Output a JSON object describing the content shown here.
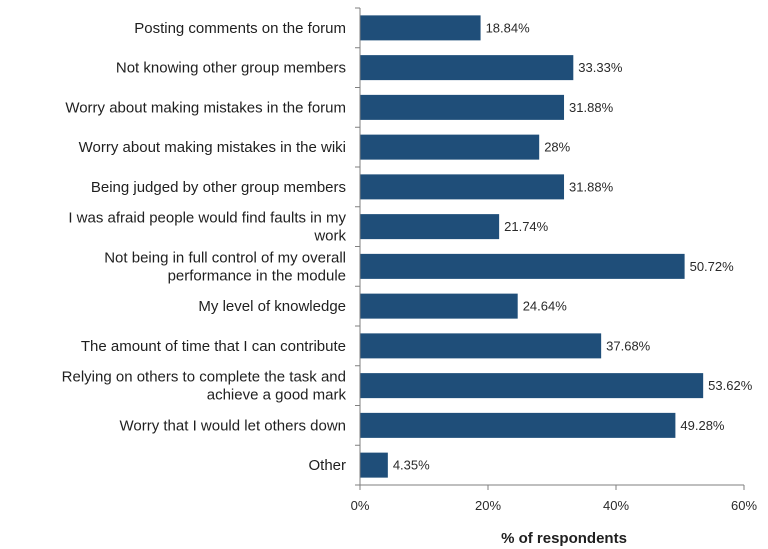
{
  "chart_data": {
    "type": "bar",
    "orientation": "horizontal",
    "categories": [
      "Posting comments on the forum",
      "Not knowing other group members",
      "Worry about making mistakes in the forum",
      "Worry about making mistakes in the wiki",
      "Being judged by other group members",
      "I was afraid people would find faults in my work",
      "Not being in full control of my overall performance in the module",
      "My level of knowledge",
      "The amount of time that I can contribute",
      "Relying on others to complete the task and achieve a good mark",
      "Worry that I would let others down",
      "Other"
    ],
    "category_lines": [
      [
        "Posting comments on the forum"
      ],
      [
        "Not knowing other group members"
      ],
      [
        "Worry about making mistakes in the forum"
      ],
      [
        "Worry about making mistakes in the wiki"
      ],
      [
        "Being judged by other group members"
      ],
      [
        "I was afraid people would find faults in my",
        "work"
      ],
      [
        "Not being in full control of my overall",
        "performance in the module"
      ],
      [
        "My level of knowledge"
      ],
      [
        "The amount of time that I can contribute"
      ],
      [
        "Relying on others to complete the task and",
        "achieve a good mark"
      ],
      [
        "Worry that I would let others down"
      ],
      [
        "Other"
      ]
    ],
    "values": [
      18.84,
      33.33,
      31.88,
      28,
      31.88,
      21.74,
      50.72,
      24.64,
      37.68,
      53.62,
      49.28,
      4.35
    ],
    "value_labels": [
      "18.84%",
      "33.33%",
      "31.88%",
      "28%",
      "31.88%",
      "21.74%",
      "50.72%",
      "24.64%",
      "37.68%",
      "53.62%",
      "49.28%",
      "4.35%"
    ],
    "xlabel": "% of respondents",
    "ylabel": "",
    "xlim": [
      0,
      60
    ],
    "xticks": [
      0,
      20,
      40,
      60
    ],
    "xtick_labels": [
      "0%",
      "20%",
      "40%",
      "60%"
    ],
    "grid": false,
    "colors": {
      "bar": "#1f4e79",
      "axis": "#7f7f7f"
    }
  }
}
